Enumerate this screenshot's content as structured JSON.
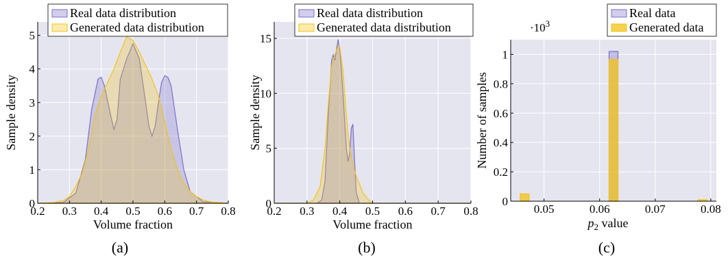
{
  "chart_data": [
    {
      "id": "a",
      "type": "area",
      "caption": "(a)",
      "xlabel": "Volume fraction",
      "ylabel": "Sample density",
      "xlim": [
        0.2,
        0.8
      ],
      "ylim": [
        0,
        5.4
      ],
      "xticks": [
        0.2,
        0.3,
        0.4,
        0.5,
        0.6,
        0.7,
        0.8
      ],
      "yticks": [
        0,
        1,
        2,
        3,
        4,
        5
      ],
      "grid": true,
      "legend_position": "top",
      "series": [
        {
          "name": "Real data distribution",
          "color": "#7b6fc9",
          "x": [
            0.2,
            0.28,
            0.32,
            0.35,
            0.37,
            0.39,
            0.4,
            0.41,
            0.43,
            0.44,
            0.45,
            0.46,
            0.48,
            0.5,
            0.52,
            0.54,
            0.55,
            0.56,
            0.57,
            0.58,
            0.59,
            0.6,
            0.61,
            0.62,
            0.64,
            0.66,
            0.68,
            0.72,
            0.8
          ],
          "y": [
            0,
            0.02,
            0.3,
            1.3,
            2.8,
            3.7,
            3.75,
            3.5,
            2.6,
            2.2,
            2.5,
            3.7,
            4.3,
            4.75,
            4.3,
            3.0,
            2.3,
            2.0,
            2.3,
            3.0,
            3.6,
            3.8,
            3.75,
            3.5,
            2.2,
            1.0,
            0.35,
            0.05,
            0
          ]
        },
        {
          "name": "Generated data distribution",
          "color": "#f2c318",
          "x": [
            0.2,
            0.25,
            0.28,
            0.3,
            0.32,
            0.34,
            0.36,
            0.38,
            0.4,
            0.42,
            0.44,
            0.46,
            0.48,
            0.5,
            0.52,
            0.54,
            0.56,
            0.58,
            0.6,
            0.62,
            0.64,
            0.66,
            0.68,
            0.7,
            0.72,
            0.75,
            0.8
          ],
          "y": [
            0,
            0.02,
            0.08,
            0.2,
            0.5,
            0.9,
            1.6,
            2.6,
            3.2,
            3.6,
            4.0,
            4.5,
            4.95,
            4.85,
            4.5,
            4.1,
            3.7,
            3.2,
            2.4,
            1.6,
            1.0,
            0.6,
            0.35,
            0.2,
            0.1,
            0.03,
            0
          ]
        }
      ]
    },
    {
      "id": "b",
      "type": "area",
      "caption": "(b)",
      "xlabel": "Volume fraction",
      "ylabel": "Sample density",
      "xlim": [
        0.2,
        0.8
      ],
      "ylim": [
        0,
        16.5
      ],
      "xticks": [
        0.2,
        0.3,
        0.4,
        0.5,
        0.6,
        0.7,
        0.8
      ],
      "yticks": [
        0,
        5,
        10,
        15
      ],
      "grid": true,
      "legend_position": "top",
      "series": [
        {
          "name": "Real data distribution",
          "color": "#7b6fc9",
          "x": [
            0.2,
            0.33,
            0.345,
            0.355,
            0.365,
            0.375,
            0.38,
            0.385,
            0.39,
            0.395,
            0.4,
            0.41,
            0.42,
            0.425,
            0.43,
            0.435,
            0.44,
            0.445,
            0.45,
            0.46,
            0.8
          ],
          "y": [
            0,
            0,
            0.3,
            2.0,
            8.0,
            13.0,
            13.5,
            13.0,
            14.0,
            14.9,
            14.0,
            10.0,
            5.0,
            3.8,
            4.5,
            6.8,
            7.2,
            4.0,
            1.0,
            0,
            0
          ]
        },
        {
          "name": "Generated data distribution",
          "color": "#f2c318",
          "x": [
            0.2,
            0.3,
            0.32,
            0.34,
            0.355,
            0.365,
            0.375,
            0.385,
            0.395,
            0.4,
            0.41,
            0.42,
            0.43,
            0.44,
            0.45,
            0.47,
            0.49,
            0.5,
            0.8
          ],
          "y": [
            0,
            0,
            0.3,
            1.5,
            5.0,
            9.0,
            12.5,
            13.5,
            14.3,
            14.2,
            12.0,
            8.0,
            5.0,
            3.5,
            2.5,
            1.0,
            0.2,
            0,
            0
          ]
        }
      ]
    },
    {
      "id": "c",
      "type": "bar",
      "caption": "(c)",
      "xlabel": "p2 value",
      "ylabel": "Number of samples",
      "y_multiplier": "·10^3",
      "xlim": [
        0.044,
        0.081
      ],
      "ylim": [
        0,
        1.1
      ],
      "xticks": [
        0.05,
        0.06,
        0.07,
        0.08
      ],
      "yticks": [
        0,
        0.2,
        0.4,
        0.6,
        0.8,
        1
      ],
      "grid": true,
      "legend_position": "top",
      "bin_width": 0.0016,
      "series": [
        {
          "name": "Real data",
          "color": "#7b6fc9",
          "x": [
            0.0625
          ],
          "values": [
            1.02
          ]
        },
        {
          "name": "Generated data",
          "color": "#f2c318",
          "x": [
            0.0465,
            0.0625,
            0.0785
          ],
          "values": [
            0.05,
            0.965,
            0.01
          ]
        }
      ]
    }
  ]
}
